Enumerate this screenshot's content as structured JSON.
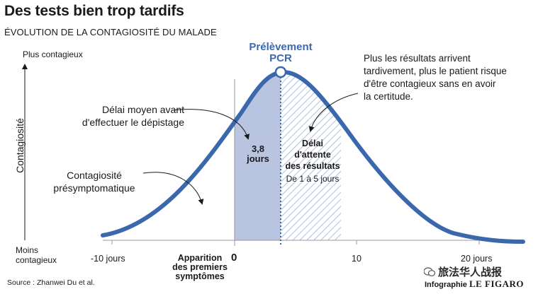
{
  "header": {
    "title": "Des tests bien trop tardifs",
    "subtitle": "ÉVOLUTION DE LA CONTAGIOSITÉ DU MALADE"
  },
  "yaxis": {
    "top_label": "Plus contagieux",
    "bottom_label_line1": "Moins",
    "bottom_label_line2": "contagieux",
    "title": "Contagiosité"
  },
  "pcr_label": {
    "line1": "Prélèvement",
    "line2": "PCR"
  },
  "annotations": {
    "results_note_1": "Plus les résultats arrivent",
    "results_note_2": "tardivement, plus le patient risque",
    "results_note_3": "d'être contagieux sans en avoir",
    "results_note_4": "la certitude.",
    "delay_avg_1": "Délai moyen avant",
    "delay_avg_2": "d'effectuer le dépistage",
    "presympto_1": "Contagiosité",
    "presympto_2": "présymptomatique",
    "days_value": "3,8",
    "days_unit": "jours",
    "wait_1": "Délai",
    "wait_2": "d'attente",
    "wait_3": "des résultats",
    "wait_range": "De 1 à 5 jours"
  },
  "xaxis": {
    "ticks": [
      "-10 jours",
      "0",
      "10",
      "20 jours"
    ],
    "onset_1": "Apparition",
    "onset_2": "des premiers",
    "onset_3": "symptômes"
  },
  "footer": {
    "source": "Source : Zhanwei Du et al.",
    "watermark": "旅法华人战报",
    "credit_prefix": "Infographie",
    "credit_brand": "LE FIGARO"
  },
  "colors": {
    "curve": "#3b68ad",
    "presym_fill": "#b9c4e0",
    "hatch": "#8fa5cf",
    "pcr_text": "#3b68ad"
  }
}
